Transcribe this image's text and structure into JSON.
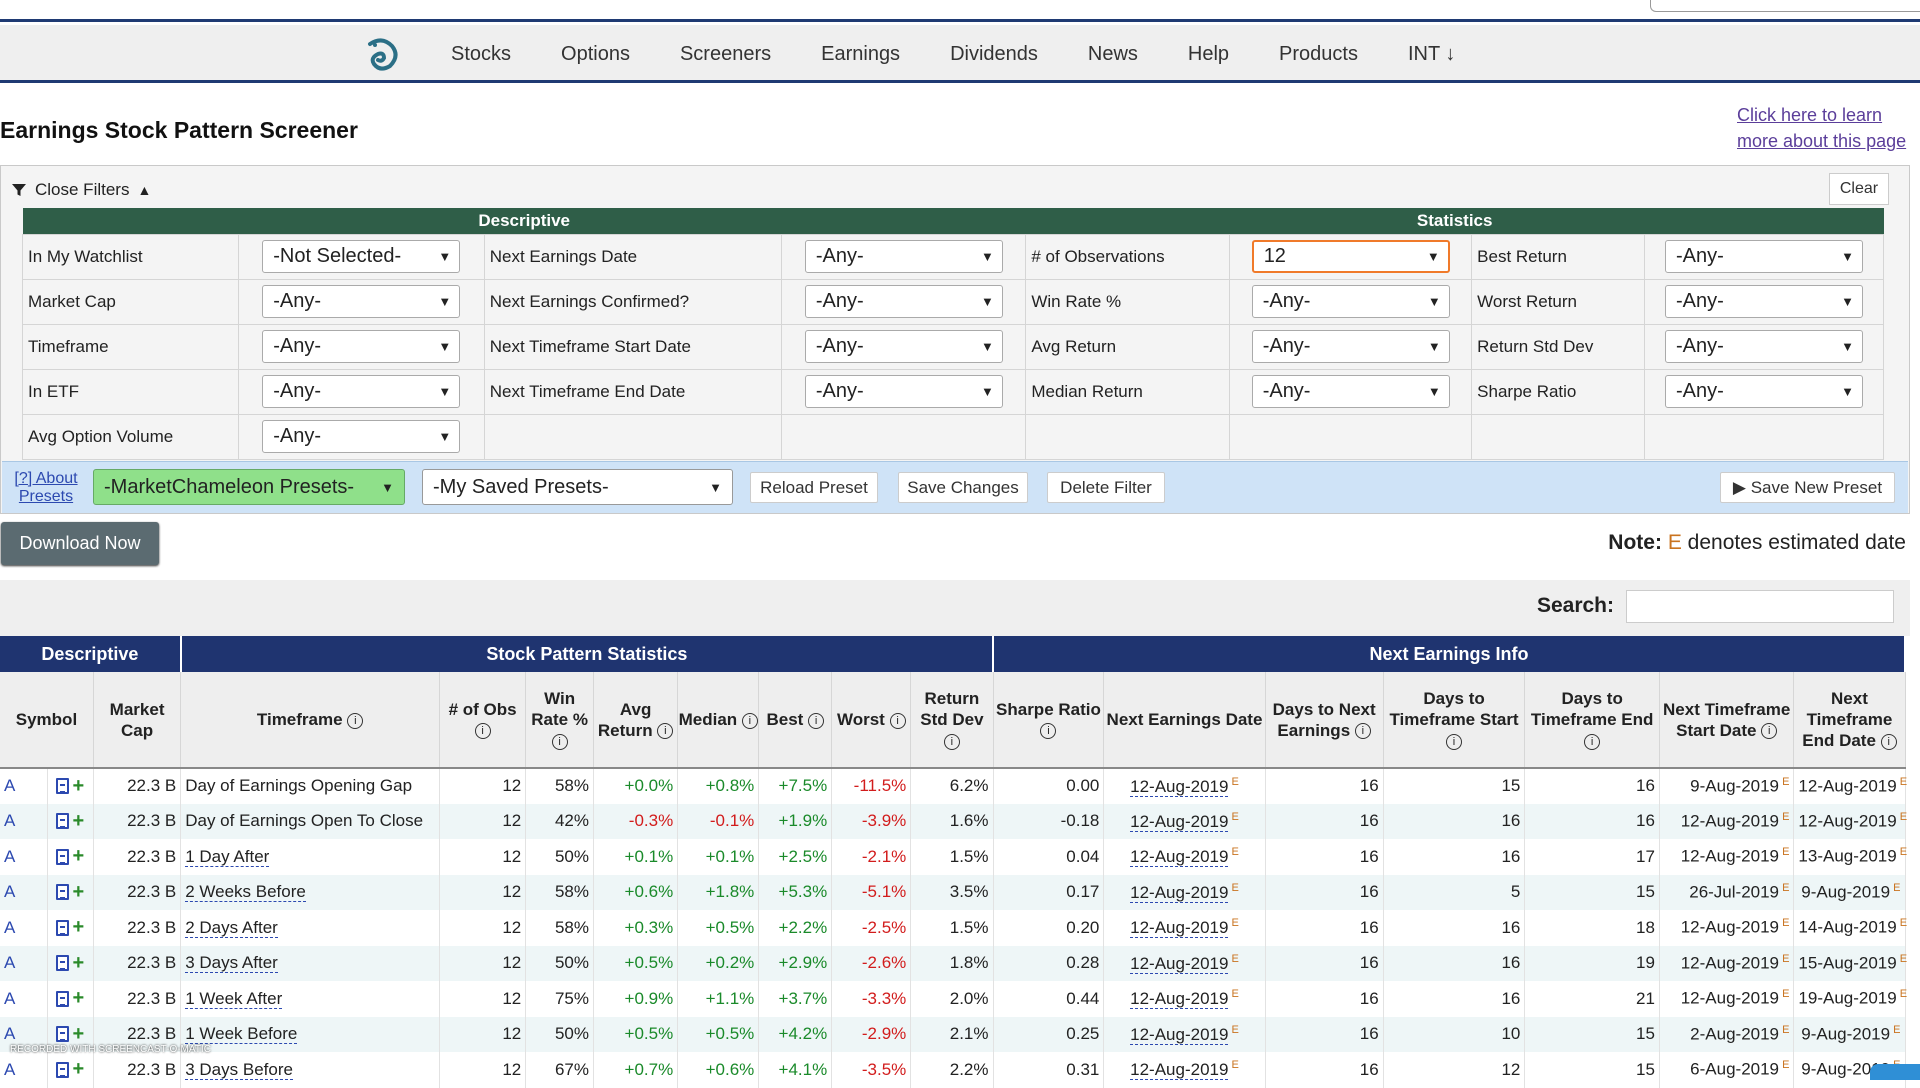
{
  "nav": {
    "items": [
      "Stocks",
      "Options",
      "Screeners",
      "Earnings",
      "Dividends",
      "News",
      "Help",
      "Products",
      "INT ↓"
    ]
  },
  "page": {
    "title": "Earnings Stock Pattern Screener",
    "learn_link": "Click here to learn more about this page"
  },
  "filters": {
    "close_label": "Close Filters",
    "clear_label": "Clear",
    "descriptive_header": "Descriptive",
    "statistics_header": "Statistics",
    "rows": [
      {
        "l1": "In My Watchlist",
        "v1": "-Not Selected-",
        "l2": "Next Earnings Date",
        "v2": "-Any-",
        "l3": "# of Observations",
        "v3": "12",
        "l4": "Best Return",
        "v4": "-Any-"
      },
      {
        "l1": "Market Cap",
        "v1": "-Any-",
        "l2": "Next Earnings Confirmed?",
        "v2": "-Any-",
        "l3": "Win Rate %",
        "v3": "-Any-",
        "l4": "Worst Return",
        "v4": "-Any-"
      },
      {
        "l1": "Timeframe",
        "v1": "-Any-",
        "l2": "Next Timeframe Start Date",
        "v2": "-Any-",
        "l3": "Avg Return",
        "v3": "-Any-",
        "l4": "Return Std Dev",
        "v4": "-Any-"
      },
      {
        "l1": "In ETF",
        "v1": "-Any-",
        "l2": "Next Timeframe End Date",
        "v2": "-Any-",
        "l3": "Median Return",
        "v3": "-Any-",
        "l4": "Sharpe Ratio",
        "v4": "-Any-"
      },
      {
        "l1": "Avg Option Volume",
        "v1": "-Any-"
      }
    ]
  },
  "presets": {
    "about": "[?] About Presets",
    "mc_presets": "-MarketChameleon Presets-",
    "saved_presets": "-My Saved Presets-",
    "reload": "Reload Preset",
    "save_changes": "Save Changes",
    "delete_filter": "Delete Filter",
    "save_new": "▶ Save New Preset"
  },
  "download_label": "Download Now",
  "note": {
    "prefix": "Note:",
    "e": "E",
    "text": "denotes estimated date"
  },
  "search_label": "Search:",
  "table": {
    "groups": [
      "Descriptive",
      "Stock Pattern Statistics",
      "Next Earnings Info"
    ],
    "columns": [
      "Symbol",
      "Market Cap",
      "Timeframe",
      "# of Obs",
      "Win Rate %",
      "Avg Return",
      "Median",
      "Best",
      "Worst",
      "Return Std Dev",
      "Sharpe Ratio",
      "Next Earnings Date",
      "Days to Next Earnings",
      "Days to Timeframe Start",
      "Days to Timeframe End",
      "Next Timeframe Start Date",
      "Next Timeframe End Date"
    ],
    "rows": [
      [
        "A",
        "22.3 B",
        "Day of Earnings Opening Gap",
        "12",
        "58%",
        "+0.0%",
        "+0.8%",
        "+7.5%",
        "-11.5%",
        "6.2%",
        "0.00",
        "12-Aug-2019",
        "16",
        "15",
        "16",
        "9-Aug-2019",
        "12-Aug-2019"
      ],
      [
        "A",
        "22.3 B",
        "Day of Earnings Open To Close",
        "12",
        "42%",
        "-0.3%",
        "-0.1%",
        "+1.9%",
        "-3.9%",
        "1.6%",
        "-0.18",
        "12-Aug-2019",
        "16",
        "16",
        "16",
        "12-Aug-2019",
        "12-Aug-2019"
      ],
      [
        "A",
        "22.3 B",
        "1 Day After",
        "12",
        "50%",
        "+0.1%",
        "+0.1%",
        "+2.5%",
        "-2.1%",
        "1.5%",
        "0.04",
        "12-Aug-2019",
        "16",
        "16",
        "17",
        "12-Aug-2019",
        "13-Aug-2019"
      ],
      [
        "A",
        "22.3 B",
        "2 Weeks Before",
        "12",
        "58%",
        "+0.6%",
        "+1.8%",
        "+5.3%",
        "-5.1%",
        "3.5%",
        "0.17",
        "12-Aug-2019",
        "16",
        "5",
        "15",
        "26-Jul-2019",
        "9-Aug-2019"
      ],
      [
        "A",
        "22.3 B",
        "2 Days After",
        "12",
        "58%",
        "+0.3%",
        "+0.5%",
        "+2.2%",
        "-2.5%",
        "1.5%",
        "0.20",
        "12-Aug-2019",
        "16",
        "16",
        "18",
        "12-Aug-2019",
        "14-Aug-2019"
      ],
      [
        "A",
        "22.3 B",
        "3 Days After",
        "12",
        "50%",
        "+0.5%",
        "+0.2%",
        "+2.9%",
        "-2.6%",
        "1.8%",
        "0.28",
        "12-Aug-2019",
        "16",
        "16",
        "19",
        "12-Aug-2019",
        "15-Aug-2019"
      ],
      [
        "A",
        "22.3 B",
        "1 Week After",
        "12",
        "75%",
        "+0.9%",
        "+1.1%",
        "+3.7%",
        "-3.3%",
        "2.0%",
        "0.44",
        "12-Aug-2019",
        "16",
        "16",
        "21",
        "12-Aug-2019",
        "19-Aug-2019"
      ],
      [
        "A",
        "22.3 B",
        "1 Week Before",
        "12",
        "50%",
        "+0.5%",
        "+0.5%",
        "+4.2%",
        "-2.9%",
        "2.1%",
        "0.25",
        "12-Aug-2019",
        "16",
        "10",
        "15",
        "2-Aug-2019",
        "9-Aug-2019"
      ],
      [
        "A",
        "22.3 B",
        "3 Days Before",
        "12",
        "67%",
        "+0.7%",
        "+0.6%",
        "+4.1%",
        "-3.5%",
        "2.2%",
        "0.31",
        "12-Aug-2019",
        "16",
        "12",
        "15",
        "6-Aug-2019",
        "9-Aug-2019"
      ]
    ]
  },
  "watermark": "RECORDED WITH SCREENCAST-O-MATIC",
  "colors": {
    "nav_border": "#1f3a73",
    "filter_header": "#2f5e48",
    "table_header": "#1f3470",
    "positive": "#1a8a2a",
    "negative": "#d21c1c",
    "highlight": "#f07a2a"
  }
}
